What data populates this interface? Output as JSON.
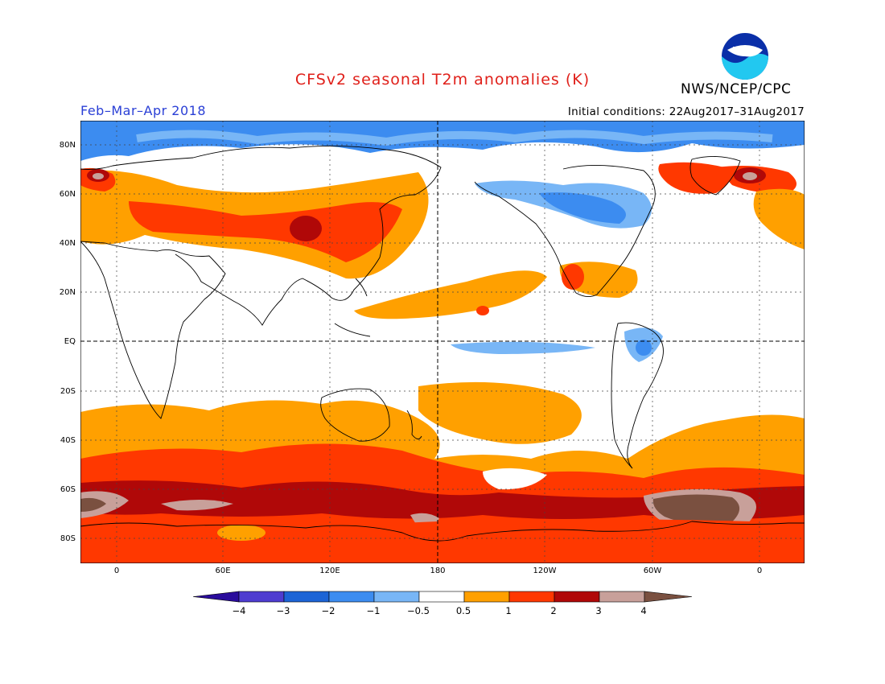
{
  "header": {
    "title": "CFSv2 seasonal T2m anomalies (K)",
    "agency": "NWS/NCEP/CPC",
    "noaa_logo_text": "NOAA",
    "period": "Feb–Mar–Apr 2018",
    "initial_conditions": "Initial conditions: 22Aug2017–31Aug2017"
  },
  "map": {
    "lat_labels": [
      "80N",
      "60N",
      "40N",
      "20N",
      "EQ",
      "20S",
      "40S",
      "60S",
      "80S"
    ],
    "lon_labels": [
      "0",
      "60E",
      "120E",
      "180",
      "120W",
      "60W",
      "0"
    ]
  },
  "legend": {
    "labels": [
      "−4",
      "−3",
      "−2",
      "−1",
      "−0.5",
      "0.5",
      "1",
      "2",
      "3",
      "4"
    ],
    "colors": [
      "#2a0c9c",
      "#4e3cd0",
      "#1c64d6",
      "#3c8cf0",
      "#78b6f6",
      "#ffffff",
      "#ffa000",
      "#ff3800",
      "#b00808",
      "#c8a09a",
      "#7a5040"
    ]
  },
  "colors": {
    "title": "#e0201a",
    "period": "#2a3fd6"
  }
}
